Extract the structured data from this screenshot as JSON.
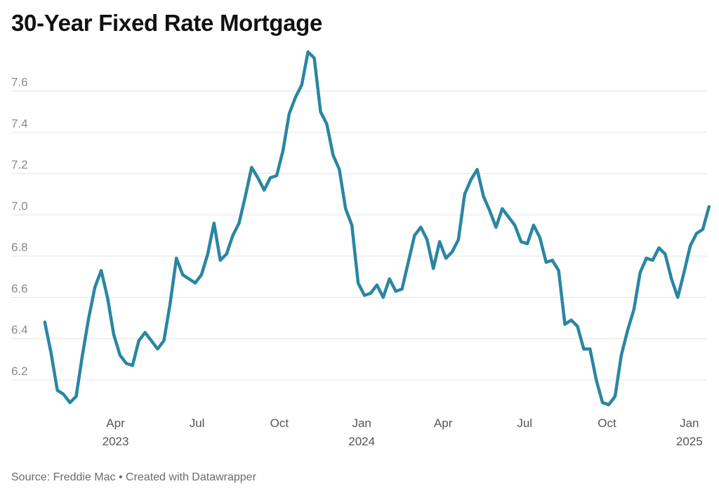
{
  "title": "30-Year Fixed Rate Mortgage",
  "footer": {
    "source_label": "Source:",
    "source": "Freddie Mac",
    "separator": "•",
    "credit": "Created with Datawrapper"
  },
  "colors": {
    "line": "#2a86a3",
    "grid": "#e3e3e3",
    "y_tick_text": "#8a8a8a",
    "x_tick_text": "#555555"
  },
  "chart_data": {
    "type": "line",
    "title": "30-Year Fixed Rate Mortgage",
    "xlabel": "",
    "ylabel": "",
    "ylim": [
      6.06,
      7.81
    ],
    "xlim": [
      "2023-01-09",
      "2025-01-20"
    ],
    "grid": "horizontal",
    "legend": "none",
    "y_ticks": [
      6.2,
      6.4,
      6.6,
      6.8,
      7.0,
      7.2,
      7.4,
      7.6
    ],
    "y_tick_labels": [
      "6.2",
      "6.4",
      "6.6",
      "6.8",
      "7.0",
      "7.2",
      "7.4",
      "7.6"
    ],
    "x_ticks": [
      {
        "date": "2023-04-01",
        "label": "Apr",
        "year": "2023"
      },
      {
        "date": "2023-07-01",
        "label": "Jul",
        "year": ""
      },
      {
        "date": "2023-10-01",
        "label": "Oct",
        "year": ""
      },
      {
        "date": "2024-01-01",
        "label": "Jan",
        "year": "2024"
      },
      {
        "date": "2024-04-01",
        "label": "Apr",
        "year": ""
      },
      {
        "date": "2024-07-01",
        "label": "Jul",
        "year": ""
      },
      {
        "date": "2024-10-01",
        "label": "Oct",
        "year": ""
      },
      {
        "date": "2025-01-01",
        "label": "Jan",
        "year": "2025"
      }
    ],
    "series": [
      {
        "values": [
          [
            "2023-01-12",
            6.48
          ],
          [
            "2023-01-19",
            6.33
          ],
          [
            "2023-01-26",
            6.15
          ],
          [
            "2023-02-02",
            6.13
          ],
          [
            "2023-02-09",
            6.09
          ],
          [
            "2023-02-16",
            6.12
          ],
          [
            "2023-02-23",
            6.32
          ],
          [
            "2023-03-02",
            6.5
          ],
          [
            "2023-03-09",
            6.65
          ],
          [
            "2023-03-16",
            6.73
          ],
          [
            "2023-03-23",
            6.6
          ],
          [
            "2023-03-30",
            6.42
          ],
          [
            "2023-04-06",
            6.32
          ],
          [
            "2023-04-13",
            6.28
          ],
          [
            "2023-04-20",
            6.27
          ],
          [
            "2023-04-27",
            6.39
          ],
          [
            "2023-05-04",
            6.43
          ],
          [
            "2023-05-11",
            6.39
          ],
          [
            "2023-05-18",
            6.35
          ],
          [
            "2023-05-25",
            6.39
          ],
          [
            "2023-06-01",
            6.57
          ],
          [
            "2023-06-08",
            6.79
          ],
          [
            "2023-06-15",
            6.71
          ],
          [
            "2023-06-22",
            6.69
          ],
          [
            "2023-06-29",
            6.67
          ],
          [
            "2023-07-06",
            6.71
          ],
          [
            "2023-07-13",
            6.81
          ],
          [
            "2023-07-20",
            6.96
          ],
          [
            "2023-07-27",
            6.78
          ],
          [
            "2023-08-03",
            6.81
          ],
          [
            "2023-08-10",
            6.9
          ],
          [
            "2023-08-17",
            6.96
          ],
          [
            "2023-08-24",
            7.09
          ],
          [
            "2023-08-31",
            7.23
          ],
          [
            "2023-09-07",
            7.18
          ],
          [
            "2023-09-14",
            7.12
          ],
          [
            "2023-09-21",
            7.18
          ],
          [
            "2023-09-28",
            7.19
          ],
          [
            "2023-10-05",
            7.31
          ],
          [
            "2023-10-12",
            7.49
          ],
          [
            "2023-10-19",
            7.57
          ],
          [
            "2023-10-26",
            7.63
          ],
          [
            "2023-11-02",
            7.79
          ],
          [
            "2023-11-09",
            7.76
          ],
          [
            "2023-11-16",
            7.5
          ],
          [
            "2023-11-23",
            7.44
          ],
          [
            "2023-11-30",
            7.29
          ],
          [
            "2023-12-07",
            7.22
          ],
          [
            "2023-12-14",
            7.03
          ],
          [
            "2023-12-21",
            6.95
          ],
          [
            "2023-12-28",
            6.67
          ],
          [
            "2024-01-04",
            6.61
          ],
          [
            "2024-01-11",
            6.62
          ],
          [
            "2024-01-18",
            6.66
          ],
          [
            "2024-01-25",
            6.6
          ],
          [
            "2024-02-01",
            6.69
          ],
          [
            "2024-02-08",
            6.63
          ],
          [
            "2024-02-15",
            6.64
          ],
          [
            "2024-02-22",
            6.77
          ],
          [
            "2024-02-29",
            6.9
          ],
          [
            "2024-03-07",
            6.94
          ],
          [
            "2024-03-14",
            6.88
          ],
          [
            "2024-03-21",
            6.74
          ],
          [
            "2024-03-28",
            6.87
          ],
          [
            "2024-04-04",
            6.79
          ],
          [
            "2024-04-11",
            6.82
          ],
          [
            "2024-04-18",
            6.88
          ],
          [
            "2024-04-25",
            7.1
          ],
          [
            "2024-05-02",
            7.17
          ],
          [
            "2024-05-09",
            7.22
          ],
          [
            "2024-05-16",
            7.09
          ],
          [
            "2024-05-23",
            7.02
          ],
          [
            "2024-05-30",
            6.94
          ],
          [
            "2024-06-06",
            7.03
          ],
          [
            "2024-06-13",
            6.99
          ],
          [
            "2024-06-20",
            6.95
          ],
          [
            "2024-06-27",
            6.87
          ],
          [
            "2024-07-04",
            6.86
          ],
          [
            "2024-07-11",
            6.95
          ],
          [
            "2024-07-18",
            6.89
          ],
          [
            "2024-07-25",
            6.77
          ],
          [
            "2024-08-01",
            6.78
          ],
          [
            "2024-08-08",
            6.73
          ],
          [
            "2024-08-15",
            6.47
          ],
          [
            "2024-08-22",
            6.49
          ],
          [
            "2024-08-29",
            6.46
          ],
          [
            "2024-09-05",
            6.35
          ],
          [
            "2024-09-12",
            6.35
          ],
          [
            "2024-09-19",
            6.2
          ],
          [
            "2024-09-26",
            6.09
          ],
          [
            "2024-10-03",
            6.08
          ],
          [
            "2024-10-10",
            6.12
          ],
          [
            "2024-10-17",
            6.32
          ],
          [
            "2024-10-24",
            6.44
          ],
          [
            "2024-10-31",
            6.54
          ],
          [
            "2024-11-07",
            6.72
          ],
          [
            "2024-11-14",
            6.79
          ],
          [
            "2024-11-21",
            6.78
          ],
          [
            "2024-11-28",
            6.84
          ],
          [
            "2024-12-05",
            6.81
          ],
          [
            "2024-12-12",
            6.69
          ],
          [
            "2024-12-19",
            6.6
          ],
          [
            "2024-12-26",
            6.72
          ],
          [
            "2025-01-02",
            6.85
          ],
          [
            "2025-01-09",
            6.91
          ],
          [
            "2025-01-16",
            6.93
          ],
          [
            "2025-01-23",
            7.04
          ]
        ]
      }
    ]
  }
}
